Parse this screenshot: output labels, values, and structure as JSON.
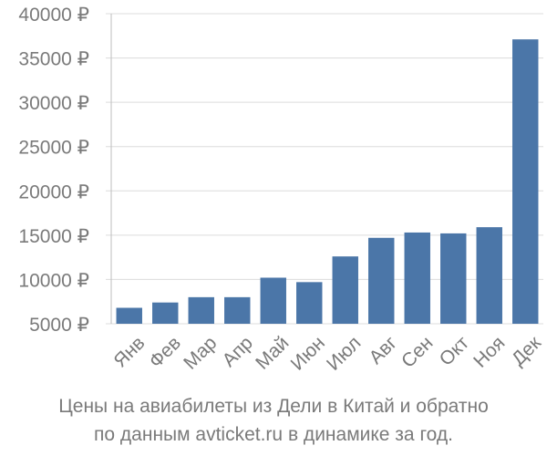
{
  "chart_data": {
    "type": "bar",
    "categories": [
      "Янв",
      "Фев",
      "Мар",
      "Апр",
      "Май",
      "Июн",
      "Июл",
      "Авг",
      "Сен",
      "Окт",
      "Ноя",
      "Дек"
    ],
    "values": [
      6800,
      7400,
      8000,
      8000,
      10200,
      9700,
      12600,
      14700,
      15300,
      15200,
      15900,
      37100
    ],
    "currency": "₽",
    "ylim": [
      5000,
      40000
    ],
    "yticks": [
      5000,
      10000,
      15000,
      20000,
      25000,
      30000,
      35000,
      40000
    ],
    "grid": "horizontal",
    "bar_color": "#4b76a8"
  },
  "caption": {
    "line1": "Цены на авиабилеты из Дели в Китай и обратно",
    "line2": "по данным avticket.ru в динамике за год."
  }
}
